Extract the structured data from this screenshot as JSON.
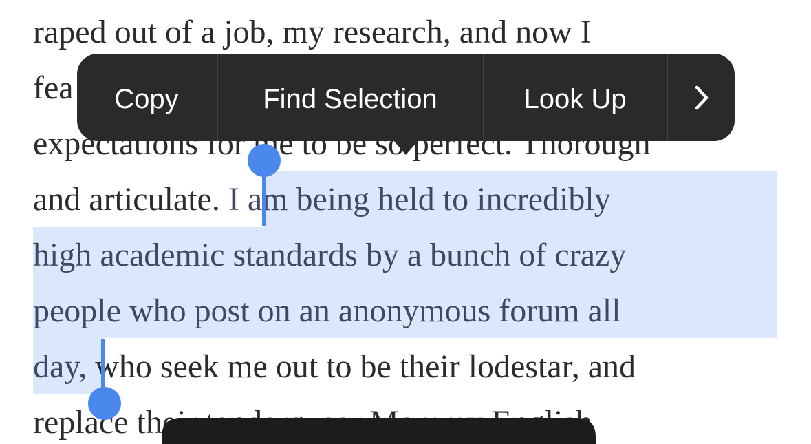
{
  "document": {
    "lines": [
      {
        "segments": [
          {
            "text": "raped out of a job, my research, and now I"
          }
        ]
      },
      {
        "segments": [
          {
            "text": "fea"
          }
        ]
      },
      {
        "segments": [
          {
            "text": "expectations for me to be so perfect. Thorough"
          }
        ]
      },
      {
        "segments": [
          {
            "text": "and articulate. "
          },
          {
            "text": "I am being held to incredibly",
            "selected": true
          }
        ]
      },
      {
        "segments": [
          {
            "text": "high academic standards by a bunch of crazy",
            "selected": true
          }
        ]
      },
      {
        "segments": [
          {
            "text": "people who post on an anonymous forum all",
            "selected": true
          }
        ]
      },
      {
        "segments": [
          {
            "text": "day,",
            "selected": true
          },
          {
            "text": " who seek me out to be their lodestar, and"
          }
        ]
      },
      {
        "segments": [
          {
            "text": "replace their tenderqueer Mommy English"
          }
        ]
      }
    ]
  },
  "menu": {
    "items": [
      "Copy",
      "Find Selection",
      "Look Up"
    ]
  }
}
